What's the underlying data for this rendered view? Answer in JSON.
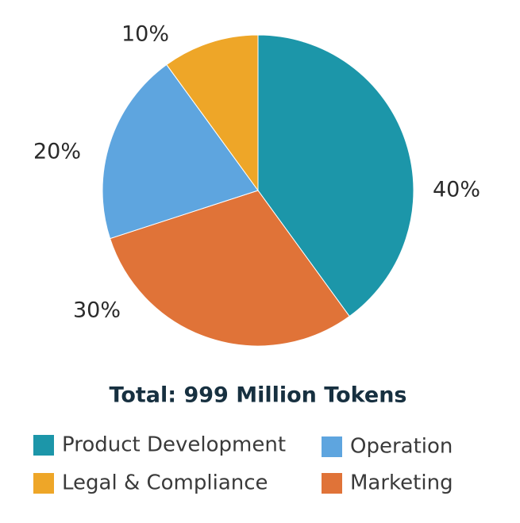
{
  "chart_data": {
    "type": "pie",
    "title": "Total: 999 Million Tokens",
    "categories": [
      "Product Development",
      "Marketing",
      "Operation",
      "Legal & Compliance"
    ],
    "values": [
      40,
      30,
      20,
      10
    ],
    "value_labels": [
      "40%",
      "30%",
      "20%",
      "10%"
    ],
    "colors": [
      "#1c96a9",
      "#e07338",
      "#5ea5df",
      "#eea628"
    ],
    "start_angle": 0,
    "direction": "clockwise"
  }
}
